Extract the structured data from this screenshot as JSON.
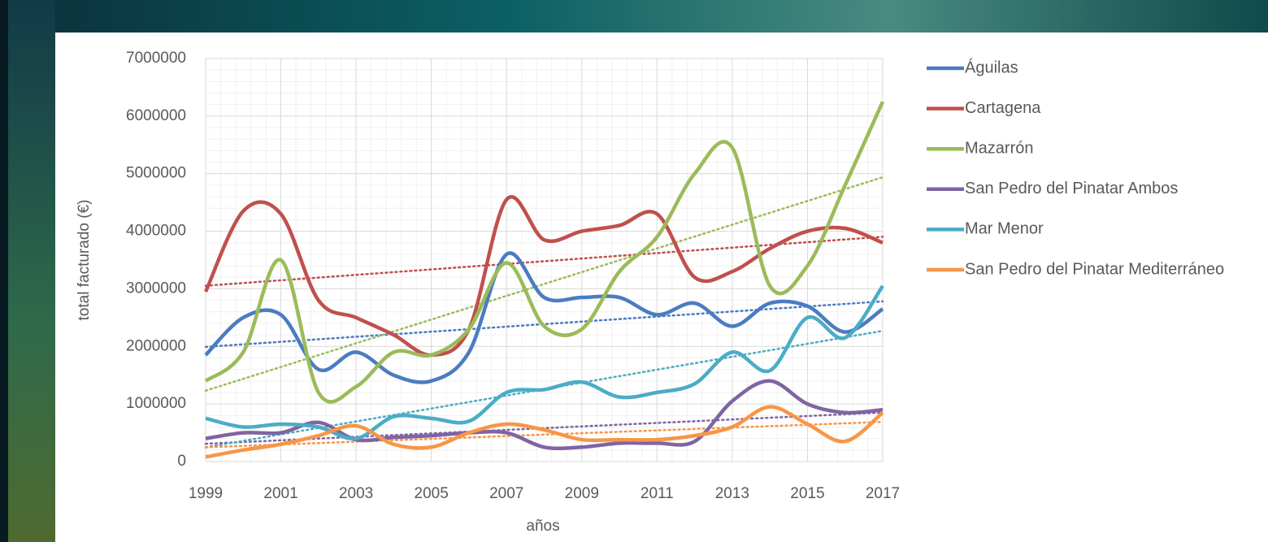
{
  "chart_data": {
    "type": "line",
    "x_label": "años",
    "y_label": "total facturado (€)",
    "x": [
      1999,
      2000,
      2001,
      2002,
      2003,
      2004,
      2005,
      2006,
      2007,
      2008,
      2009,
      2010,
      2011,
      2012,
      2013,
      2014,
      2015,
      2016,
      2017
    ],
    "series": [
      {
        "name": "Águilas",
        "color": "#4a7cc0",
        "values": [
          1850000,
          2500000,
          2550000,
          1600000,
          1900000,
          1500000,
          1400000,
          1900000,
          3600000,
          2850000,
          2850000,
          2850000,
          2550000,
          2750000,
          2350000,
          2750000,
          2700000,
          2250000,
          2650000
        ]
      },
      {
        "name": "Cartagena",
        "color": "#c0504d",
        "values": [
          2950000,
          4350000,
          4300000,
          2800000,
          2500000,
          2200000,
          1850000,
          2300000,
          4550000,
          3850000,
          4000000,
          4100000,
          4300000,
          3200000,
          3300000,
          3700000,
          4000000,
          4050000,
          3800000
        ]
      },
      {
        "name": "Mazarrón",
        "color": "#9bbb59",
        "values": [
          1400000,
          1900000,
          3500000,
          1200000,
          1300000,
          1900000,
          1850000,
          2300000,
          3450000,
          2350000,
          2300000,
          3300000,
          3900000,
          5000000,
          5450000,
          3050000,
          3400000,
          4800000,
          6250000
        ]
      },
      {
        "name": "San Pedro del Pinatar Ambos",
        "color": "#8064a2",
        "values": [
          400000,
          500000,
          500000,
          680000,
          380000,
          420000,
          450000,
          500000,
          500000,
          250000,
          250000,
          320000,
          320000,
          350000,
          1050000,
          1400000,
          1000000,
          850000,
          900000
        ]
      },
      {
        "name": "Mar Menor",
        "color": "#4bacc6",
        "values": [
          750000,
          600000,
          650000,
          600000,
          400000,
          780000,
          750000,
          700000,
          1200000,
          1250000,
          1380000,
          1120000,
          1200000,
          1350000,
          1900000,
          1580000,
          2500000,
          2150000,
          3050000
        ]
      },
      {
        "name": "San Pedro del Pinatar Mediterráneo",
        "color": "#f79646",
        "values": [
          80000,
          200000,
          300000,
          450000,
          620000,
          300000,
          250000,
          500000,
          650000,
          550000,
          380000,
          380000,
          380000,
          450000,
          600000,
          950000,
          650000,
          350000,
          850000
        ]
      }
    ],
    "xlim": [
      1999,
      2017
    ],
    "xticks": [
      1999,
      2001,
      2003,
      2005,
      2007,
      2009,
      2011,
      2013,
      2015,
      2017
    ],
    "ylim": [
      0,
      7000000
    ],
    "yticks": [
      0,
      1000000,
      2000000,
      3000000,
      4000000,
      5000000,
      6000000,
      7000000
    ],
    "grid": true,
    "smooth": true,
    "trendline": true,
    "legend": "right"
  }
}
